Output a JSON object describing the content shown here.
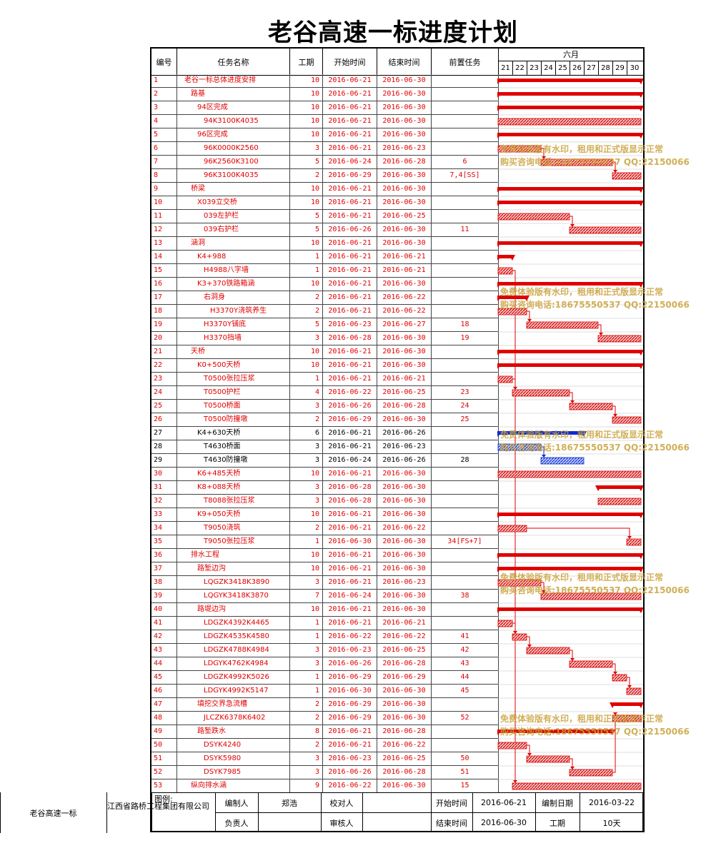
{
  "title": "老谷高速一标进度计划",
  "headers": {
    "no": "编号",
    "name": "任务名称",
    "duration": "工期",
    "start": "开始时间",
    "end": "结束时间",
    "predecessors": "前置任务",
    "month": "六月",
    "days": [
      "21",
      "22",
      "23",
      "24",
      "25",
      "26",
      "27",
      "28",
      "29",
      "30"
    ]
  },
  "tasks": [
    {
      "no": "1",
      "name": "老谷一标总体进度安排",
      "indent": 0,
      "dur": "10",
      "start": "2016-06-21",
      "end": "2016-06-30",
      "pred": "",
      "color": "red",
      "kind": "summary"
    },
    {
      "no": "2",
      "name": "路基",
      "indent": 1,
      "dur": "10",
      "start": "2016-06-21",
      "end": "2016-06-30",
      "pred": "",
      "color": "red",
      "kind": "summary"
    },
    {
      "no": "3",
      "name": "94区完成",
      "indent": 2,
      "dur": "10",
      "start": "2016-06-21",
      "end": "2016-06-30",
      "pred": "",
      "color": "red",
      "kind": "summary"
    },
    {
      "no": "4",
      "name": "94K3100K4035",
      "indent": 3,
      "dur": "10",
      "start": "2016-06-21",
      "end": "2016-06-30",
      "pred": "",
      "color": "red",
      "kind": "task"
    },
    {
      "no": "5",
      "name": "96区完成",
      "indent": 2,
      "dur": "10",
      "start": "2016-06-21",
      "end": "2016-06-30",
      "pred": "",
      "color": "red",
      "kind": "summary"
    },
    {
      "no": "6",
      "name": "96K0000K2560",
      "indent": 3,
      "dur": "3",
      "start": "2016-06-21",
      "end": "2016-06-23",
      "pred": "",
      "color": "red",
      "kind": "task"
    },
    {
      "no": "7",
      "name": "96K2560K3100",
      "indent": 3,
      "dur": "5",
      "start": "2016-06-24",
      "end": "2016-06-28",
      "pred": "6",
      "color": "red",
      "kind": "task"
    },
    {
      "no": "8",
      "name": "96K3100K4035",
      "indent": 3,
      "dur": "2",
      "start": "2016-06-29",
      "end": "2016-06-30",
      "pred": "7,4[SS]",
      "color": "red",
      "kind": "task"
    },
    {
      "no": "9",
      "name": "桥梁",
      "indent": 1,
      "dur": "10",
      "start": "2016-06-21",
      "end": "2016-06-30",
      "pred": "",
      "color": "red",
      "kind": "summary"
    },
    {
      "no": "10",
      "name": "X039立交桥",
      "indent": 2,
      "dur": "10",
      "start": "2016-06-21",
      "end": "2016-06-30",
      "pred": "",
      "color": "red",
      "kind": "summary"
    },
    {
      "no": "11",
      "name": "039左护栏",
      "indent": 3,
      "dur": "5",
      "start": "2016-06-21",
      "end": "2016-06-25",
      "pred": "",
      "color": "red",
      "kind": "task"
    },
    {
      "no": "12",
      "name": "039右护栏",
      "indent": 3,
      "dur": "5",
      "start": "2016-06-26",
      "end": "2016-06-30",
      "pred": "11",
      "color": "red",
      "kind": "task"
    },
    {
      "no": "13",
      "name": "涵洞",
      "indent": 1,
      "dur": "10",
      "start": "2016-06-21",
      "end": "2016-06-30",
      "pred": "",
      "color": "red",
      "kind": "summary"
    },
    {
      "no": "14",
      "name": "K4+988",
      "indent": 2,
      "dur": "1",
      "start": "2016-06-21",
      "end": "2016-06-21",
      "pred": "",
      "color": "red",
      "kind": "summary"
    },
    {
      "no": "15",
      "name": "H4988八字墙",
      "indent": 3,
      "dur": "1",
      "start": "2016-06-21",
      "end": "2016-06-21",
      "pred": "",
      "color": "red",
      "kind": "task"
    },
    {
      "no": "16",
      "name": "K3+370铁路箱涵",
      "indent": 2,
      "dur": "10",
      "start": "2016-06-21",
      "end": "2016-06-30",
      "pred": "",
      "color": "red",
      "kind": "summary"
    },
    {
      "no": "17",
      "name": "右洞身",
      "indent": 3,
      "dur": "2",
      "start": "2016-06-21",
      "end": "2016-06-22",
      "pred": "",
      "color": "red",
      "kind": "summary"
    },
    {
      "no": "18",
      "name": "H3370Y浇筑养生",
      "indent": 4,
      "dur": "2",
      "start": "2016-06-21",
      "end": "2016-06-22",
      "pred": "",
      "color": "red",
      "kind": "task"
    },
    {
      "no": "19",
      "name": "H3370Y铺底",
      "indent": 3,
      "dur": "5",
      "start": "2016-06-23",
      "end": "2016-06-27",
      "pred": "18",
      "color": "red",
      "kind": "task"
    },
    {
      "no": "20",
      "name": "H3370挡墙",
      "indent": 3,
      "dur": "3",
      "start": "2016-06-28",
      "end": "2016-06-30",
      "pred": "19",
      "color": "red",
      "kind": "task"
    },
    {
      "no": "21",
      "name": "天桥",
      "indent": 1,
      "dur": "10",
      "start": "2016-06-21",
      "end": "2016-06-30",
      "pred": "",
      "color": "red",
      "kind": "summary"
    },
    {
      "no": "22",
      "name": "K0+500天桥",
      "indent": 2,
      "dur": "10",
      "start": "2016-06-21",
      "end": "2016-06-30",
      "pred": "",
      "color": "red",
      "kind": "summary"
    },
    {
      "no": "23",
      "name": "T0500张拉压浆",
      "indent": 3,
      "dur": "1",
      "start": "2016-06-21",
      "end": "2016-06-21",
      "pred": "",
      "color": "red",
      "kind": "task"
    },
    {
      "no": "24",
      "name": "T0500护栏",
      "indent": 3,
      "dur": "4",
      "start": "2016-06-22",
      "end": "2016-06-25",
      "pred": "23",
      "color": "red",
      "kind": "task"
    },
    {
      "no": "25",
      "name": "T0500桥面",
      "indent": 3,
      "dur": "3",
      "start": "2016-06-26",
      "end": "2016-06-28",
      "pred": "24",
      "color": "red",
      "kind": "task"
    },
    {
      "no": "26",
      "name": "T0500防撞墩",
      "indent": 3,
      "dur": "2",
      "start": "2016-06-29",
      "end": "2016-06-30",
      "pred": "25",
      "color": "red",
      "kind": "task"
    },
    {
      "no": "27",
      "name": "K4+630天桥",
      "indent": 2,
      "dur": "6",
      "start": "2016-06-21",
      "end": "2016-06-26",
      "pred": "",
      "color": "black",
      "kind": "summary"
    },
    {
      "no": "28",
      "name": "T4630桥面",
      "indent": 3,
      "dur": "3",
      "start": "2016-06-21",
      "end": "2016-06-23",
      "pred": "",
      "color": "black",
      "kind": "task"
    },
    {
      "no": "29",
      "name": "T4630防撞墩",
      "indent": 3,
      "dur": "3",
      "start": "2016-06-24",
      "end": "2016-06-26",
      "pred": "28",
      "color": "black",
      "kind": "task"
    },
    {
      "no": "30",
      "name": "K6+485天桥",
      "indent": 2,
      "dur": "10",
      "start": "2016-06-21",
      "end": "2016-06-30",
      "pred": "",
      "color": "red",
      "kind": "task"
    },
    {
      "no": "31",
      "name": "K8+088天桥",
      "indent": 2,
      "dur": "3",
      "start": "2016-06-28",
      "end": "2016-06-30",
      "pred": "",
      "color": "red",
      "kind": "summary"
    },
    {
      "no": "32",
      "name": "T8088张拉压浆",
      "indent": 3,
      "dur": "3",
      "start": "2016-06-28",
      "end": "2016-06-30",
      "pred": "",
      "color": "red",
      "kind": "task"
    },
    {
      "no": "33",
      "name": "K9+050天桥",
      "indent": 2,
      "dur": "10",
      "start": "2016-06-21",
      "end": "2016-06-30",
      "pred": "",
      "color": "red",
      "kind": "summary"
    },
    {
      "no": "34",
      "name": "T9050浇筑",
      "indent": 3,
      "dur": "2",
      "start": "2016-06-21",
      "end": "2016-06-22",
      "pred": "",
      "color": "red",
      "kind": "task"
    },
    {
      "no": "35",
      "name": "T9050张拉压浆",
      "indent": 3,
      "dur": "1",
      "start": "2016-06-30",
      "end": "2016-06-30",
      "pred": "34[FS+7]",
      "color": "red",
      "kind": "task"
    },
    {
      "no": "36",
      "name": "排水工程",
      "indent": 1,
      "dur": "10",
      "start": "2016-06-21",
      "end": "2016-06-30",
      "pred": "",
      "color": "red",
      "kind": "summary"
    },
    {
      "no": "37",
      "name": "路堑边沟",
      "indent": 2,
      "dur": "10",
      "start": "2016-06-21",
      "end": "2016-06-30",
      "pred": "",
      "color": "red",
      "kind": "summary"
    },
    {
      "no": "38",
      "name": "LQGZK3418K3890",
      "indent": 3,
      "dur": "3",
      "start": "2016-06-21",
      "end": "2016-06-23",
      "pred": "",
      "color": "red",
      "kind": "task"
    },
    {
      "no": "39",
      "name": "LQGYK3418K3870",
      "indent": 3,
      "dur": "7",
      "start": "2016-06-24",
      "end": "2016-06-30",
      "pred": "38",
      "color": "red",
      "kind": "task"
    },
    {
      "no": "40",
      "name": "路堤边沟",
      "indent": 2,
      "dur": "10",
      "start": "2016-06-21",
      "end": "2016-06-30",
      "pred": "",
      "color": "red",
      "kind": "summary"
    },
    {
      "no": "41",
      "name": "LDGZK4392K4465",
      "indent": 3,
      "dur": "1",
      "start": "2016-06-21",
      "end": "2016-06-21",
      "pred": "",
      "color": "red",
      "kind": "task"
    },
    {
      "no": "42",
      "name": "LDGZK4535K4580",
      "indent": 3,
      "dur": "1",
      "start": "2016-06-22",
      "end": "2016-06-22",
      "pred": "41",
      "color": "red",
      "kind": "task"
    },
    {
      "no": "43",
      "name": "LDGZK4788K4984",
      "indent": 3,
      "dur": "3",
      "start": "2016-06-23",
      "end": "2016-06-25",
      "pred": "42",
      "color": "red",
      "kind": "task"
    },
    {
      "no": "44",
      "name": "LDGYK4762K4984",
      "indent": 3,
      "dur": "3",
      "start": "2016-06-26",
      "end": "2016-06-28",
      "pred": "43",
      "color": "red",
      "kind": "task"
    },
    {
      "no": "45",
      "name": "LDGZK4992K5026",
      "indent": 3,
      "dur": "1",
      "start": "2016-06-29",
      "end": "2016-06-29",
      "pred": "44",
      "color": "red",
      "kind": "task"
    },
    {
      "no": "46",
      "name": "LDGYK4992K5147",
      "indent": 3,
      "dur": "1",
      "start": "2016-06-30",
      "end": "2016-06-30",
      "pred": "45",
      "color": "red",
      "kind": "task"
    },
    {
      "no": "47",
      "name": "填挖交界急流槽",
      "indent": 2,
      "dur": "2",
      "start": "2016-06-29",
      "end": "2016-06-30",
      "pred": "",
      "color": "red",
      "kind": "summary"
    },
    {
      "no": "48",
      "name": "JLCZK6378K6402",
      "indent": 3,
      "dur": "2",
      "start": "2016-06-29",
      "end": "2016-06-30",
      "pred": "52",
      "color": "red",
      "kind": "task"
    },
    {
      "no": "49",
      "name": "路堑跌水",
      "indent": 2,
      "dur": "8",
      "start": "2016-06-21",
      "end": "2016-06-28",
      "pred": "",
      "color": "red",
      "kind": "summary"
    },
    {
      "no": "50",
      "name": "DSYK4240",
      "indent": 3,
      "dur": "2",
      "start": "2016-06-21",
      "end": "2016-06-22",
      "pred": "",
      "color": "red",
      "kind": "task"
    },
    {
      "no": "51",
      "name": "DSYK5980",
      "indent": 3,
      "dur": "3",
      "start": "2016-06-23",
      "end": "2016-06-25",
      "pred": "50",
      "color": "red",
      "kind": "task"
    },
    {
      "no": "52",
      "name": "DSYK7985",
      "indent": 3,
      "dur": "3",
      "start": "2016-06-26",
      "end": "2016-06-28",
      "pred": "51",
      "color": "red",
      "kind": "task"
    },
    {
      "no": "53",
      "name": "纵向排水涵",
      "indent": 1,
      "dur": "9",
      "start": "2016-06-22",
      "end": "2016-06-30",
      "pred": "15",
      "color": "red",
      "kind": "task"
    }
  ],
  "footer": {
    "project": "老谷高速一标",
    "company": "江西省路桥工程集团有限公司",
    "legend": "图例:",
    "preparer_label": "编制人",
    "preparer": "郑浩",
    "checker_label": "校对人",
    "checker": "",
    "owner_label": "负责人",
    "owner": "",
    "reviewer_label": "审核人",
    "reviewer": "",
    "start_label": "开始时间",
    "start": "2016-06-21",
    "end_label": "结束时间",
    "end": "2016-06-30",
    "compiled_label": "编制日期",
    "compiled": "2016-03-22",
    "duration_label": "工期",
    "duration": "10天"
  },
  "watermark": {
    "line1": "免费体验版有水印，租用和正式版显示正常",
    "line2": "购买咨询电话:18675550537 QQ:22150066"
  },
  "colors": {
    "critical": "#e00000",
    "normal": "#0a2bd6",
    "watermark": "#c9a23a"
  }
}
